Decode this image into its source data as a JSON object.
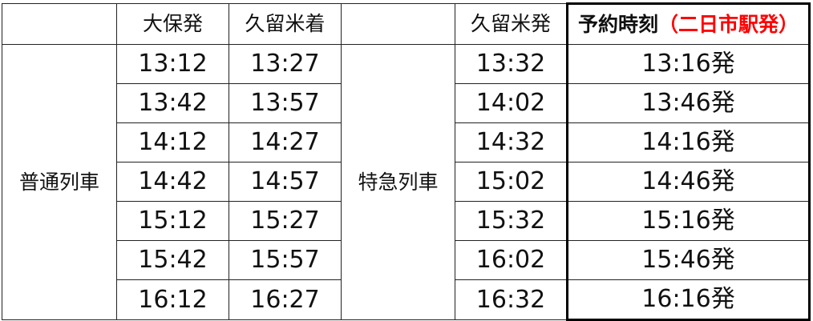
{
  "headers": {
    "local_depart": "大保発",
    "local_arrive": "久留米着",
    "express_depart": "久留米発",
    "reservation": "予約時刻",
    "reservation_note": "（二日市駅発）"
  },
  "groups": {
    "local": "普通列車",
    "express": "特急列車"
  },
  "rows": [
    {
      "local_depart": "13:12",
      "local_arrive": "13:27",
      "express_depart": "13:32",
      "reservation": "13:16発"
    },
    {
      "local_depart": "13:42",
      "local_arrive": "13:57",
      "express_depart": "14:02",
      "reservation": "13:46発"
    },
    {
      "local_depart": "14:12",
      "local_arrive": "14:27",
      "express_depart": "14:32",
      "reservation": "14:16発"
    },
    {
      "local_depart": "14:42",
      "local_arrive": "14:57",
      "express_depart": "15:02",
      "reservation": "14:46発"
    },
    {
      "local_depart": "15:12",
      "local_arrive": "15:27",
      "express_depart": "15:32",
      "reservation": "15:16発"
    },
    {
      "local_depart": "15:42",
      "local_arrive": "15:57",
      "express_depart": "16:02",
      "reservation": "15:46発"
    },
    {
      "local_depart": "16:12",
      "local_arrive": "16:27",
      "express_depart": "16:32",
      "reservation": "16:16発"
    }
  ],
  "colors": {
    "note": "#ff0000",
    "border": "#222222"
  }
}
